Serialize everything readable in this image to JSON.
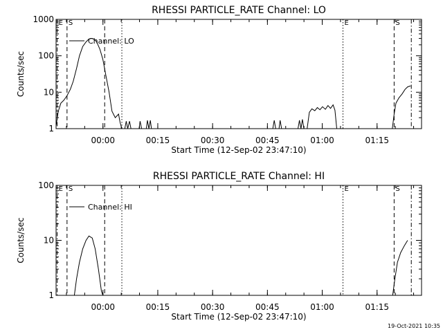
{
  "timestamp": "19-Oct-2021 10:35",
  "chart_data": [
    {
      "type": "line",
      "title": "RHESSI PARTICLE_RATE Channel: LO",
      "xlabel": "Start Time (12-Sep-02 23:47:10)",
      "ylabel": "Counts/sec",
      "yscale": "log",
      "ylim": [
        1,
        1000
      ],
      "ytick_labels": [
        "1",
        "10",
        "100",
        "1000"
      ],
      "ytick_values": [
        1,
        10,
        100,
        1000
      ],
      "xlim_minutes_from_start": [
        0,
        100
      ],
      "xtick_labels": [
        "00:00",
        "00:15",
        "00:30",
        "00:45",
        "01:00",
        "01:15"
      ],
      "xtick_minutes_from_start": [
        12.83,
        27.83,
        42.83,
        57.83,
        72.83,
        87.83
      ],
      "legend": {
        "label": "Channel: LO",
        "placement": "top-left"
      },
      "markers": [
        {
          "label": "E",
          "minute": 0.3,
          "style": "dashdot"
        },
        {
          "label": "S",
          "minute": 3.0,
          "style": "dashed"
        },
        {
          "label": "",
          "minute": 13.3,
          "style": "dashed"
        },
        {
          "label": "",
          "minute": 18.0,
          "style": "dotted"
        },
        {
          "label": "E",
          "minute": 78.5,
          "style": "dotted"
        },
        {
          "label": "S",
          "minute": 92.5,
          "style": "dashed"
        },
        {
          "label": "",
          "minute": 97.2,
          "style": "dashdot"
        }
      ],
      "series": [
        {
          "name": "Channel: LO",
          "segments": [
            [
              [
                0,
                1.2
              ],
              [
                0.6,
                3
              ],
              [
                1.3,
                5
              ],
              [
                2.1,
                6
              ],
              [
                3.0,
                8
              ],
              [
                3.9,
                12
              ],
              [
                4.7,
                20
              ],
              [
                5.6,
                45
              ],
              [
                6.4,
                100
              ],
              [
                7.3,
                180
              ],
              [
                8.2,
                240
              ],
              [
                9.0,
                290
              ],
              [
                9.9,
                300
              ],
              [
                10.7,
                270
              ],
              [
                11.2,
                230
              ],
              [
                12.0,
                150
              ],
              [
                12.8,
                80
              ],
              [
                13.6,
                30
              ],
              [
                14.5,
                10
              ],
              [
                15.3,
                3
              ],
              [
                16.2,
                2
              ],
              [
                17.1,
                2.5
              ],
              [
                17.5,
                1.5
              ],
              [
                18.0,
                1
              ]
            ],
            [
              [
                18.8,
                1
              ],
              [
                19.2,
                1.6
              ],
              [
                19.6,
                1
              ],
              [
                20.1,
                1.6
              ],
              [
                20.5,
                1
              ]
            ],
            [
              [
                22.7,
                1
              ],
              [
                23.0,
                1.6
              ],
              [
                23.4,
                1
              ]
            ],
            [
              [
                24.7,
                1
              ],
              [
                25.0,
                1.7
              ],
              [
                25.4,
                1
              ],
              [
                25.8,
                1.7
              ],
              [
                26.1,
                1
              ]
            ],
            [
              [
                59.3,
                1
              ],
              [
                59.7,
                1.7
              ],
              [
                60.1,
                1
              ]
            ],
            [
              [
                61.0,
                1
              ],
              [
                61.3,
                1.7
              ],
              [
                61.7,
                1
              ]
            ],
            [
              [
                66.2,
                1
              ],
              [
                66.6,
                1.7
              ],
              [
                67.0,
                1
              ],
              [
                67.4,
                1.8
              ],
              [
                67.8,
                1
              ]
            ],
            [
              [
                68.7,
                1
              ],
              [
                69.3,
                2.8
              ],
              [
                70,
                3.5
              ],
              [
                70.8,
                3.1
              ],
              [
                71.5,
                3.8
              ],
              [
                72.2,
                3.3
              ],
              [
                72.9,
                4
              ],
              [
                73.7,
                3.4
              ],
              [
                74.4,
                4.3
              ],
              [
                75.1,
                3.6
              ],
              [
                75.8,
                4.5
              ],
              [
                76.3,
                3.2
              ],
              [
                76.8,
                1
              ]
            ],
            [
              [
                92.0,
                1
              ],
              [
                92.5,
                2.5
              ],
              [
                93.0,
                5
              ],
              [
                93.8,
                7
              ],
              [
                94.7,
                9
              ],
              [
                95.5,
                12
              ],
              [
                96.2,
                14
              ],
              [
                97.0,
                15
              ]
            ]
          ]
        }
      ]
    },
    {
      "type": "line",
      "title": "RHESSI PARTICLE_RATE Channel: HI",
      "xlabel": "Start Time (12-Sep-02 23:47:10)",
      "ylabel": "Counts/sec",
      "yscale": "log",
      "ylim": [
        1,
        100
      ],
      "ytick_labels": [
        "1",
        "10",
        "100"
      ],
      "ytick_values": [
        1,
        10,
        100
      ],
      "xlim_minutes_from_start": [
        0,
        100
      ],
      "xtick_labels": [
        "00:00",
        "00:15",
        "00:30",
        "00:45",
        "01:00",
        "01:15"
      ],
      "xtick_minutes_from_start": [
        12.83,
        27.83,
        42.83,
        57.83,
        72.83,
        87.83
      ],
      "legend": {
        "label": "Channel: HI",
        "placement": "top-left"
      },
      "markers": [
        {
          "label": "E",
          "minute": 0.3,
          "style": "dashdot"
        },
        {
          "label": "S",
          "minute": 3.0,
          "style": "dashed"
        },
        {
          "label": "",
          "minute": 13.3,
          "style": "dashed"
        },
        {
          "label": "",
          "minute": 18.0,
          "style": "dotted"
        },
        {
          "label": "E",
          "minute": 78.5,
          "style": "dotted"
        },
        {
          "label": "S",
          "minute": 92.5,
          "style": "dashed"
        },
        {
          "label": "",
          "minute": 97.2,
          "style": "dashdot"
        }
      ],
      "series": [
        {
          "name": "Channel: HI",
          "segments": [
            [
              [
                5.0,
                1
              ],
              [
                5.6,
                2
              ],
              [
                6.4,
                4
              ],
              [
                7.3,
                7
              ],
              [
                8.2,
                10
              ],
              [
                9.0,
                12
              ],
              [
                9.9,
                11
              ],
              [
                10.7,
                7
              ],
              [
                11.6,
                3
              ],
              [
                12.4,
                1.2
              ],
              [
                12.8,
                1
              ]
            ],
            [
              [
                92.1,
                1
              ],
              [
                92.7,
                2
              ],
              [
                93.4,
                4
              ],
              [
                94.3,
                6
              ],
              [
                95.3,
                8
              ],
              [
                96.2,
                10
              ]
            ]
          ]
        }
      ]
    }
  ]
}
